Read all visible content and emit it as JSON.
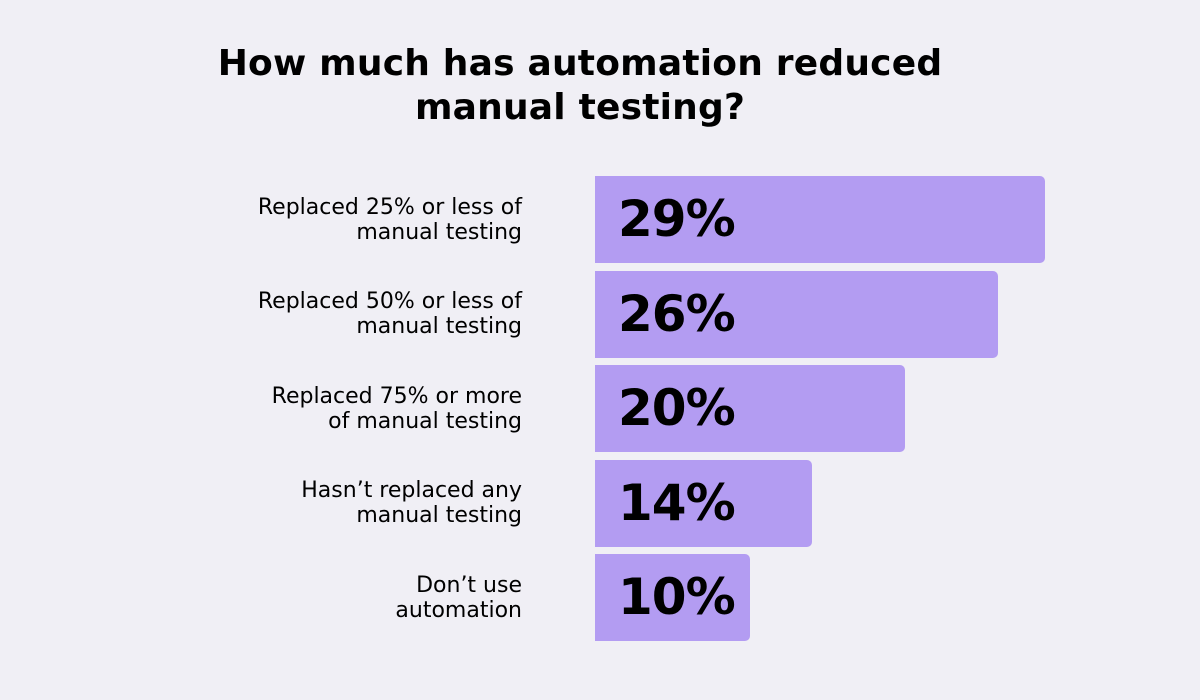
{
  "chart_data": {
    "type": "bar",
    "orientation": "horizontal",
    "title_lines": [
      "How much has automation reduced",
      "manual testing?"
    ],
    "categories": [
      [
        "Replaced 25% or less of",
        "manual testing"
      ],
      [
        "Replaced 50% or less of",
        "manual testing"
      ],
      [
        "Replaced 75% or more",
        "of manual testing"
      ],
      [
        "Hasn’t replaced any",
        "manual testing"
      ],
      [
        "Don’t use",
        "automation"
      ]
    ],
    "values": [
      29,
      26,
      20,
      14,
      10
    ],
    "value_labels": [
      "29%",
      "26%",
      "20%",
      "14%",
      "10%"
    ],
    "unit": "%",
    "grid": false,
    "legend": "none",
    "bar_color": "#b39cf2",
    "background_color": "#f0eff5"
  }
}
